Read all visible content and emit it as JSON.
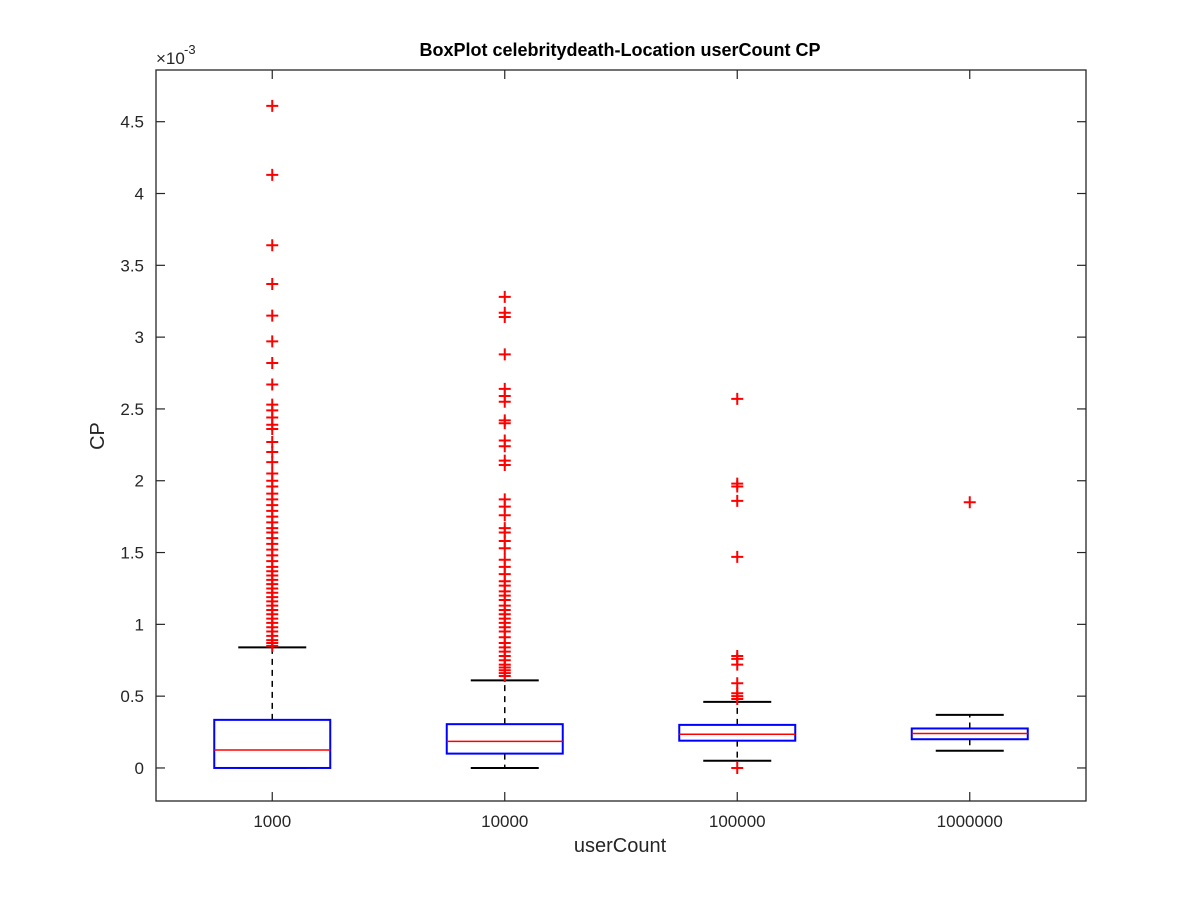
{
  "chart_data": {
    "type": "box",
    "title": "BoxPlot celebritydeath-Location userCount CP",
    "xlabel": "userCount",
    "ylabel": "CP",
    "y_exponent_base": "×10",
    "y_exponent_power": "-3",
    "ylim": [
      -0.00023,
      0.00486
    ],
    "yticks": [
      0,
      0.0005,
      0.001,
      0.0015,
      0.002,
      0.0025,
      0.003,
      0.0035,
      0.004,
      0.0045
    ],
    "ytick_labels": [
      "0",
      "0.5",
      "1",
      "1.5",
      "2",
      "2.5",
      "3",
      "3.5",
      "4",
      "4.5"
    ],
    "grid": false,
    "box_color": "#0000ff",
    "median_color": "#ff0000",
    "whisker_color": "#000000",
    "outlier_color": "#ff0000",
    "categories": [
      "1000",
      "10000",
      "100000",
      "1000000"
    ],
    "boxes": [
      {
        "label": "1000",
        "whisker_low": 0.0,
        "q1": 0.0,
        "median": 0.000125,
        "q3": 0.000335,
        "whisker_high": 0.00084,
        "outliers": [
          0.00461,
          0.00413,
          0.00364,
          0.00337,
          0.00315,
          0.00297,
          0.00282,
          0.00267,
          0.00253,
          0.00249,
          0.00244,
          0.00239,
          0.00236,
          0.00227,
          0.0022,
          0.00213,
          0.00205,
          0.002,
          0.00196,
          0.00191,
          0.00187,
          0.00183,
          0.00179,
          0.00175,
          0.00171,
          0.00167,
          0.00164,
          0.0016,
          0.00156,
          0.00152,
          0.00148,
          0.00144,
          0.0014,
          0.00137,
          0.00134,
          0.00131,
          0.00128,
          0.00125,
          0.00122,
          0.00119,
          0.00116,
          0.00113,
          0.0011,
          0.00107,
          0.00104,
          0.00101,
          0.00098,
          0.00095,
          0.00092,
          0.00089,
          0.00087,
          0.00085
        ]
      },
      {
        "label": "10000",
        "whisker_low": 0.0,
        "q1": 0.0001,
        "median": 0.000185,
        "q3": 0.000305,
        "whisker_high": 0.00061,
        "outliers": [
          0.00328,
          0.00317,
          0.00314,
          0.00288,
          0.00264,
          0.00259,
          0.00255,
          0.00242,
          0.0024,
          0.00228,
          0.00224,
          0.00214,
          0.00211,
          0.00187,
          0.00182,
          0.00176,
          0.00167,
          0.00164,
          0.00158,
          0.00153,
          0.00145,
          0.0014,
          0.00135,
          0.0013,
          0.00127,
          0.00123,
          0.0012,
          0.00117,
          0.00113,
          0.0011,
          0.00107,
          0.00104,
          0.00101,
          0.00098,
          0.00095,
          0.00091,
          0.00087,
          0.00084,
          0.00081,
          0.00078,
          0.00075,
          0.00072,
          0.0007,
          0.00068,
          0.00066,
          0.00064
        ]
      },
      {
        "label": "100000",
        "whisker_low": 5e-05,
        "q1": 0.00019,
        "median": 0.000235,
        "q3": 0.0003,
        "whisker_high": 0.00046,
        "outliers": [
          0.00257,
          0.00198,
          0.00196,
          0.00186,
          0.00147,
          0.00078,
          0.00076,
          0.00072,
          0.00059,
          0.00052,
          0.0005,
          0.00048,
          0.0
        ],
        "low_outliers_note": ""
      },
      {
        "label": "1000000",
        "whisker_low": 0.00012,
        "q1": 0.0002,
        "median": 0.00024,
        "q3": 0.000275,
        "whisker_high": 0.00037,
        "outliers": [
          0.00185
        ]
      }
    ]
  }
}
